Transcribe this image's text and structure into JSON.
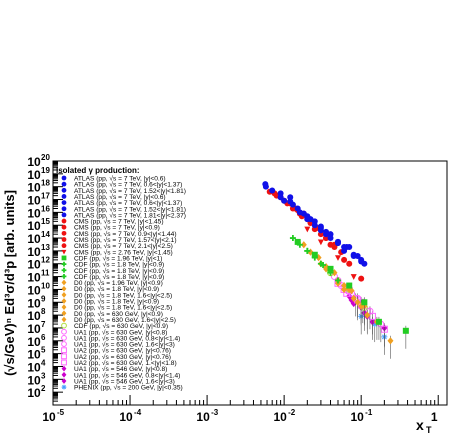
{
  "chart_data": {
    "type": "scatter",
    "title": "",
    "xlabel": "x",
    "xlabel_sub": "T",
    "ylabel": "(√s/GeV)ⁿ Ed³σ/d³p [arb. units]",
    "xscale": "log",
    "yscale": "log",
    "xlim": [
      1e-05,
      1.3
    ],
    "ylim": [
      10,
      1e+20
    ],
    "grid": false,
    "legend_placement": "left",
    "x_ticks": [
      {
        "value": 1e-05,
        "base": "10",
        "exp": "-5"
      },
      {
        "value": 0.0001,
        "base": "10",
        "exp": "-4"
      },
      {
        "value": 0.001,
        "base": "10",
        "exp": "-3"
      },
      {
        "value": 0.01,
        "base": "10",
        "exp": "-2"
      },
      {
        "value": 0.1,
        "base": "10",
        "exp": "-1"
      },
      {
        "value": 1,
        "base": "1",
        "exp": ""
      }
    ],
    "y_ticks": [
      {
        "value": 100.0,
        "exp": "2"
      },
      {
        "value": 1000.0,
        "exp": "3"
      },
      {
        "value": 10000.0,
        "exp": "4"
      },
      {
        "value": 100000.0,
        "exp": "5"
      },
      {
        "value": 1000000.0,
        "exp": "6"
      },
      {
        "value": 10000000.0,
        "exp": "7"
      },
      {
        "value": 100000000.0,
        "exp": "8"
      },
      {
        "value": 1000000000.0,
        "exp": "9"
      },
      {
        "value": 10000000000.0,
        "exp": "10"
      },
      {
        "value": 100000000000.0,
        "exp": "11"
      },
      {
        "value": 1000000000000.0,
        "exp": "12"
      },
      {
        "value": 10000000000000.0,
        "exp": "13"
      },
      {
        "value": 100000000000000.0,
        "exp": "14"
      },
      {
        "value": 1000000000000000.0,
        "exp": "15"
      },
      {
        "value": 1e+16,
        "exp": "16"
      },
      {
        "value": 1e+17,
        "exp": "17"
      },
      {
        "value": 1e+18,
        "exp": "18"
      },
      {
        "value": 1e+19,
        "exp": "19"
      },
      {
        "value": 1e+20,
        "exp": "20"
      }
    ],
    "legend_title": "Isolated γ production:",
    "series": [
      {
        "name": "ATLAS (pp, √s = 7 TeV, |y|<0.6)",
        "color": "#1010e8",
        "marker": "circle",
        "points": [
          [
            0.0057,
            1.6e+18
          ],
          [
            0.009,
            3e+17
          ],
          [
            0.012,
            7e+16
          ],
          [
            0.02,
            5000000000000000.0
          ],
          [
            0.03,
            800000000000000.0
          ],
          [
            0.05,
            50000000000000.0
          ],
          [
            0.07,
            20000000000000.0
          ],
          [
            0.1,
            1500000000000.0
          ]
        ]
      },
      {
        "name": "ATLAS (pp, √s = 7 TeV, 0.6<|y|<1.37)",
        "color": "#1010e8",
        "marker": "circle",
        "points": [
          [
            0.0058,
            1e+18
          ],
          [
            0.009,
            1.5e+17
          ],
          [
            0.013,
            4e+16
          ],
          [
            0.022,
            3000000000000000.0
          ],
          [
            0.035,
            300000000000000.0
          ],
          [
            0.06,
            20000000000000.0
          ],
          [
            0.09,
            4000000000000.0
          ]
        ]
      },
      {
        "name": "ATLAS (pp, √s = 7 TeV, 1.52<|y|<1.81)",
        "color": "#1010e8",
        "marker": "circle",
        "points": [
          [
            0.007,
            5e+17
          ],
          [
            0.01,
            8e+16
          ],
          [
            0.016,
            1e+16
          ],
          [
            0.025,
            1000000000000000.0
          ],
          [
            0.04,
            100000000000000.0
          ]
        ]
      },
      {
        "name": "ATLAS (pp, √s = 7 TeV, |y|<0.6)",
        "color": "#1010e8",
        "marker": "circle",
        "points": [
          [
            0.012,
            1.5e+17
          ],
          [
            0.02,
            4000000000000000.0
          ],
          [
            0.03,
            400000000000000.0
          ],
          [
            0.05,
            40000000000000.0
          ],
          [
            0.08,
            5000000000000.0
          ],
          [
            0.11,
            1000000000000.0
          ]
        ]
      },
      {
        "name": "ATLAS (pp, √s = 7 TeV, 0.6<|y|<1.37)",
        "color": "#1010e8",
        "marker": "circle",
        "points": [
          [
            0.015,
            2e+16
          ],
          [
            0.025,
            2000000000000000.0
          ],
          [
            0.04,
            200000000000000.0
          ],
          [
            0.065,
            20000000000000.0
          ],
          [
            0.1,
            2000000000000.0
          ]
        ]
      },
      {
        "name": "ATLAS (pp, √s = 7 TeV, 1.52<|y|<1.81)",
        "color": "#1010e8",
        "marker": "circle",
        "points": [
          [
            0.018,
            8000000000000000.0
          ],
          [
            0.03,
            600000000000000.0
          ],
          [
            0.05,
            50000000000000.0
          ],
          [
            0.08,
            4000000000000.0
          ]
        ]
      },
      {
        "name": "ATLAS (pp, √s = 7 TeV, 1.81<|y|<2.37)",
        "color": "#1010e8",
        "marker": "circle",
        "points": [
          [
            0.02,
            3000000000000000.0
          ],
          [
            0.035,
            200000000000000.0
          ],
          [
            0.06,
            10000000000000.0
          ]
        ]
      },
      {
        "name": "CMS (pp, √s = 7 TeV, |y|<1.45)",
        "color": "#ee1111",
        "marker": "circle",
        "points": [
          [
            0.0065,
            4e+17
          ],
          [
            0.008,
            2e+17
          ],
          [
            0.01,
            8e+16
          ],
          [
            0.013,
            2e+16
          ],
          [
            0.017,
            5000000000000000.0
          ],
          [
            0.022,
            1500000000000000.0
          ],
          [
            0.03,
            200000000000000.0
          ],
          [
            0.045,
            20000000000000.0
          ],
          [
            0.07,
            1000000000000.0
          ],
          [
            0.1,
            70000000000.0
          ]
        ]
      },
      {
        "name": "CMS (pp, √s = 7 TeV, |y|<0.9)",
        "color": "#ee1111",
        "marker": "circle",
        "points": [
          [
            0.0075,
            3e+17
          ],
          [
            0.011,
            5e+16
          ],
          [
            0.016,
            8000000000000000.0
          ],
          [
            0.025,
            500000000000000.0
          ],
          [
            0.04,
            30000000000000.0
          ],
          [
            0.06,
            2000000000000.0
          ]
        ]
      },
      {
        "name": "CMS (pp, √s = 7 TeV, 0.9<|y|<1.44)",
        "color": "#ee1111",
        "marker": "circle",
        "points": [
          [
            0.009,
            1.5e+17
          ],
          [
            0.014,
            2e+16
          ],
          [
            0.02,
            3000000000000000.0
          ],
          [
            0.035,
            100000000000000.0
          ],
          [
            0.055,
            8000000000000.0
          ]
        ]
      },
      {
        "name": "CMS (pp, √s = 7 TeV, 1.57<|y|<2.1)",
        "color": "#ee1111",
        "marker": "circle",
        "points": [
          [
            0.012,
            5e+16
          ],
          [
            0.018,
            8000000000000000.0
          ],
          [
            0.028,
            600000000000000.0
          ],
          [
            0.045,
            30000000000000.0
          ]
        ]
      },
      {
        "name": "CMS (pp, √s = 7 TeV, 2.1<|y|<2.5)",
        "color": "#ee1111",
        "marker": "circle",
        "points": [
          [
            0.015,
            1.5e+16
          ],
          [
            0.022,
            2000000000000000.0
          ],
          [
            0.035,
            100000000000000.0
          ]
        ]
      },
      {
        "name": "CMS (pp, √s = 2.76 TeV, |y|<1.45)",
        "color": "#ee1111",
        "marker": "triangle-down",
        "points": [
          [
            0.02,
            500000000000000.0
          ],
          [
            0.03,
            50000000000000.0
          ],
          [
            0.05,
            3000000000000.0
          ],
          [
            0.08,
            100000000000.0
          ]
        ]
      },
      {
        "name": "CDF (pp, √s = 1.96 TeV, |y|<1)",
        "color": "#22cc22",
        "marker": "square",
        "points": [
          [
            0.015,
            50000000000000.0
          ],
          [
            0.025,
            5000000000000.0
          ],
          [
            0.04,
            400000000000.0
          ],
          [
            0.07,
            20000000000.0
          ],
          [
            0.11,
            1000000000.0
          ],
          [
            0.17,
            30000000.0
          ],
          [
            0.38,
            6000000.0
          ]
        ]
      },
      {
        "name": "CDF (pp, √s = 1.8 TeV, |y|<0.9)",
        "color": "#22cc22",
        "marker": "cross",
        "points": [
          [
            0.013,
            100000000000000.0
          ],
          [
            0.02,
            10000000000000.0
          ],
          [
            0.03,
            1000000000000.0
          ],
          [
            0.05,
            50000000000.0
          ]
        ]
      },
      {
        "name": "CDF (pp, √s = 1.8 TeV, |y|<0.9)",
        "color": "#22cc22",
        "marker": "cross",
        "points": [
          [
            0.016,
            30000000000000.0
          ],
          [
            0.025,
            3000000000000.0
          ],
          [
            0.04,
            200000000000.0
          ]
        ]
      },
      {
        "name": "CDF (pp, √s = 1.8 TeV, |y|<0.9)",
        "color": "#22cc22",
        "marker": "cross",
        "points": [
          [
            0.02,
            10000000000000.0
          ],
          [
            0.032,
            800000000000.0
          ]
        ]
      },
      {
        "name": "D0 (pp, √s = 1.96 TeV, |y|<0.9)",
        "color": "#f0a020",
        "marker": "diamond",
        "points": [
          [
            0.025,
            4000000000000.0
          ],
          [
            0.04,
            300000000000.0
          ],
          [
            0.07,
            10000000000.0
          ],
          [
            0.11,
            500000000.0
          ],
          [
            0.16,
            30000000.0
          ],
          [
            0.24,
            1000000.0
          ]
        ]
      },
      {
        "name": "D0 (pp, √s = 1.8 TeV, |y|<0.9)",
        "color": "#f0a020",
        "marker": "diamond",
        "points": [
          [
            0.018,
            30000000000000.0
          ],
          [
            0.028,
            3000000000000.0
          ],
          [
            0.045,
            200000000000.0
          ],
          [
            0.075,
            8000000000.0
          ]
        ]
      },
      {
        "name": "D0 (pp, √s = 1.8 TeV, 1.6<|y|<2.5)",
        "color": "#f0a020",
        "marker": "diamond",
        "points": [
          [
            0.022,
            8000000000000.0
          ],
          [
            0.035,
            600000000000.0
          ],
          [
            0.06,
            20000000000.0
          ]
        ]
      },
      {
        "name": "D0 (pp, √s = 1.8 TeV, |y|<0.9)",
        "color": "#f0a020",
        "marker": "diamond",
        "points": [
          [
            0.03,
            1000000000000.0
          ],
          [
            0.05,
            50000000000.0
          ],
          [
            0.09,
            1000000000.0
          ]
        ]
      },
      {
        "name": "D0 (pp, √s = 1.8 TeV, 1.6<|y|<2.5)",
        "color": "#f0a020",
        "marker": "diamond",
        "points": [
          [
            0.035,
            400000000000.0
          ],
          [
            0.06,
            10000000000.0
          ]
        ]
      },
      {
        "name": "D0 (pp, √s = 630 GeV, |y|<0.9)",
        "color": "#f0a020",
        "marker": "diamond",
        "points": [
          [
            0.05,
            30000000000.0
          ],
          [
            0.08,
            2000000000.0
          ],
          [
            0.12,
            100000000.0
          ]
        ]
      },
      {
        "name": "D0 (pp, √s = 630 GeV, 1.6<|y|<2.5)",
        "color": "#f0a020",
        "marker": "diamond",
        "points": [
          [
            0.06,
            10000000000.0
          ],
          [
            0.1,
            500000000.0
          ]
        ]
      },
      {
        "name": "CDF (pp, √s = 630 GeV, |y|<0.9)",
        "color": "#b0e040",
        "marker": "circle-open",
        "points": [
          [
            0.04,
            200000000000.0
          ],
          [
            0.07,
            10000000000.0
          ],
          [
            0.11,
            400000000.0
          ]
        ]
      },
      {
        "name": "UA1 (pp, √s = 630 GeV, |y|<0.8)",
        "color": "#ff66ff",
        "marker": "circle-open",
        "points": [
          [
            0.045,
            100000000000.0
          ],
          [
            0.065,
            15000000000.0
          ],
          [
            0.09,
            2000000000.0
          ],
          [
            0.13,
            200000000.0
          ],
          [
            0.18,
            20000000.0
          ]
        ]
      },
      {
        "name": "UA1 (pp, √s = 630 GeV, 0.8<|y|<1.4)",
        "color": "#ff66ff",
        "marker": "circle-open",
        "points": [
          [
            0.05,
            50000000000.0
          ],
          [
            0.075,
            5000000000.0
          ],
          [
            0.105,
            600000000.0
          ]
        ]
      },
      {
        "name": "UA1 (pp, √s = 630 GeV, 1.6<|y|<3)",
        "color": "#ff66ff",
        "marker": "circle-open",
        "points": [
          [
            0.055,
            20000000000.0
          ],
          [
            0.085,
            2000000000.0
          ]
        ]
      },
      {
        "name": "UA2 (pp, √s = 630 GeV, |y|<0.76)",
        "color": "#ff66ff",
        "marker": "square-open",
        "points": [
          [
            0.05,
            30000000000.0
          ],
          [
            0.07,
            8000000000.0
          ],
          [
            0.1,
            1000000000.0
          ],
          [
            0.14,
            80000000.0
          ],
          [
            0.2,
            8000000.0
          ]
        ]
      },
      {
        "name": "UA2 (pp, √s = 630 GeV, |y|<0.76)",
        "color": "#ff66ff",
        "marker": "square-open",
        "points": [
          [
            0.06,
            10000000000.0
          ],
          [
            0.09,
            1500000000.0
          ],
          [
            0.12,
            200000000.0
          ]
        ]
      },
      {
        "name": "UA2 (pp, √s = 630 GeV, 1.<|y|<1.8)",
        "color": "#ff66ff",
        "marker": "square-open",
        "points": [
          [
            0.065,
            5000000000.0
          ],
          [
            0.1,
            600000000.0
          ]
        ]
      },
      {
        "name": "UA1 (pp, √s = 546 GeV, |y|<0.8)",
        "color": "#cc00cc",
        "marker": "diamond",
        "points": [
          [
            0.07,
            3000000000.0
          ],
          [
            0.1,
            400000000.0
          ],
          [
            0.14,
            30000000.0
          ],
          [
            0.2,
            10000000.0
          ]
        ]
      },
      {
        "name": "UA1 (pp, √s = 546 GeV, 0.8<|y|<1.4)",
        "color": "#cc00cc",
        "marker": "diamond",
        "points": [
          [
            0.075,
            1500000000.0
          ],
          [
            0.11,
            150000000.0
          ]
        ]
      },
      {
        "name": "UA1 (pp, √s = 546 GeV, 1.6<|y|<3)",
        "color": "#cc00cc",
        "marker": "diamond",
        "points": [
          [
            0.08,
            800000000.0
          ],
          [
            0.12,
            80000000.0
          ]
        ]
      },
      {
        "name": "PHENIX (pp, √s = 200 GeV, |y|<0.35)",
        "color": "#4aa0ff",
        "marker": "star",
        "points": [
          [
            0.1,
            80000000.0
          ],
          [
            0.15,
            20000000.0
          ],
          [
            0.2,
            2000000.0
          ]
        ]
      }
    ]
  }
}
